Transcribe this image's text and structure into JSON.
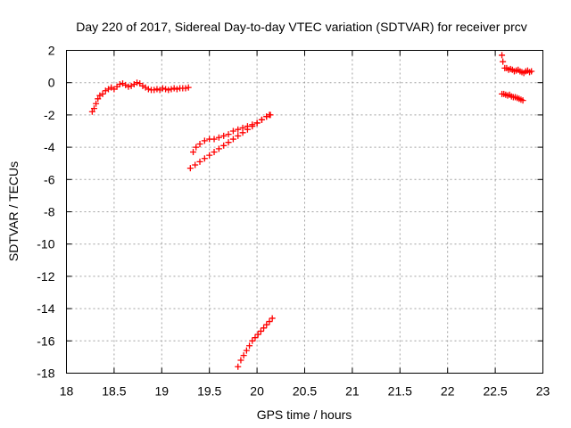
{
  "chart_data": {
    "type": "scatter",
    "title": "Day 220 of 2017, Sidereal Day-to-day VTEC variation (SDTVAR) for receiver prcv",
    "xlabel": "GPS time / hours",
    "ylabel": "SDTVAR / TECUs",
    "xlim": [
      18,
      23
    ],
    "ylim": [
      -18,
      2
    ],
    "xticks": [
      "18",
      "18.5",
      "19",
      "19.5",
      "20",
      "20.5",
      "21",
      "21.5",
      "22",
      "22.5",
      "23"
    ],
    "yticks": [
      "2",
      "0",
      "-2",
      "-4",
      "-6",
      "-8",
      "-10",
      "-12",
      "-14",
      "-16",
      "-18"
    ],
    "grid": true,
    "legend": "none",
    "marker": "+",
    "color": "#ff0000",
    "series": [
      {
        "x": [
          18.27,
          18.29,
          18.31,
          18.33,
          18.35,
          18.38,
          18.41,
          18.44,
          18.47,
          18.5,
          18.53,
          18.56,
          18.59,
          18.62,
          18.65,
          18.68,
          18.71,
          18.74,
          18.77,
          18.8,
          18.83,
          18.86,
          18.89,
          18.92,
          18.95,
          18.98,
          19.01,
          19.04,
          19.07,
          19.1,
          19.13,
          19.16,
          19.19,
          19.22,
          19.25,
          19.28
        ],
        "y": [
          -1.8,
          -1.6,
          -1.3,
          -1.0,
          -0.8,
          -0.7,
          -0.5,
          -0.4,
          -0.3,
          -0.4,
          -0.25,
          -0.1,
          -0.05,
          -0.15,
          -0.25,
          -0.2,
          -0.1,
          0.0,
          -0.05,
          -0.2,
          -0.3,
          -0.4,
          -0.45,
          -0.45,
          -0.4,
          -0.45,
          -0.35,
          -0.4,
          -0.45,
          -0.4,
          -0.35,
          -0.4,
          -0.35,
          -0.35,
          -0.35,
          -0.3
        ]
      },
      {
        "x": [
          19.33,
          19.36,
          19.4,
          19.45,
          19.5,
          19.55,
          19.6,
          19.65,
          19.7,
          19.75,
          19.8,
          19.85,
          19.9,
          19.95,
          20.0,
          20.05,
          20.1,
          20.13
        ],
        "y": [
          -4.3,
          -4.0,
          -3.8,
          -3.6,
          -3.5,
          -3.5,
          -3.4,
          -3.3,
          -3.2,
          -3.0,
          -2.9,
          -2.8,
          -2.7,
          -2.6,
          -2.5,
          -2.3,
          -2.1,
          -2.0
        ]
      },
      {
        "x": [
          19.3,
          19.35,
          19.4,
          19.45,
          19.5,
          19.55,
          19.6,
          19.65,
          19.7,
          19.75,
          19.8,
          19.85,
          19.9,
          19.95,
          20.0,
          20.05,
          20.1,
          20.14
        ],
        "y": [
          -5.3,
          -5.1,
          -4.9,
          -4.7,
          -4.5,
          -4.3,
          -4.1,
          -3.9,
          -3.7,
          -3.5,
          -3.3,
          -3.1,
          -2.9,
          -2.7,
          -2.5,
          -2.3,
          -2.1,
          -2.0
        ]
      },
      {
        "x": [
          19.8,
          19.83,
          19.86,
          19.89,
          19.92,
          19.95,
          19.98,
          20.01,
          20.04,
          20.07,
          20.1,
          20.13,
          20.16
        ],
        "y": [
          -17.6,
          -17.2,
          -16.9,
          -16.6,
          -16.3,
          -16.0,
          -15.8,
          -15.6,
          -15.4,
          -15.2,
          -15.0,
          -14.8,
          -14.6
        ]
      },
      {
        "x": [
          22.57,
          22.58,
          22.6,
          22.62,
          22.64,
          22.66,
          22.68,
          22.7,
          22.72,
          22.74,
          22.76,
          22.78,
          22.8,
          22.82,
          22.84,
          22.86,
          22.88
        ],
        "y": [
          1.7,
          1.3,
          0.9,
          0.9,
          0.8,
          0.85,
          0.8,
          0.7,
          0.75,
          0.8,
          0.7,
          0.65,
          0.6,
          0.7,
          0.75,
          0.65,
          0.7
        ]
      },
      {
        "x": [
          22.57,
          22.59,
          22.61,
          22.63,
          22.65,
          22.67,
          22.69,
          22.71,
          22.73,
          22.75,
          22.77,
          22.79
        ],
        "y": [
          -0.7,
          -0.7,
          -0.75,
          -0.8,
          -0.75,
          -0.85,
          -0.9,
          -0.9,
          -0.95,
          -1.0,
          -1.05,
          -1.1
        ]
      }
    ]
  }
}
